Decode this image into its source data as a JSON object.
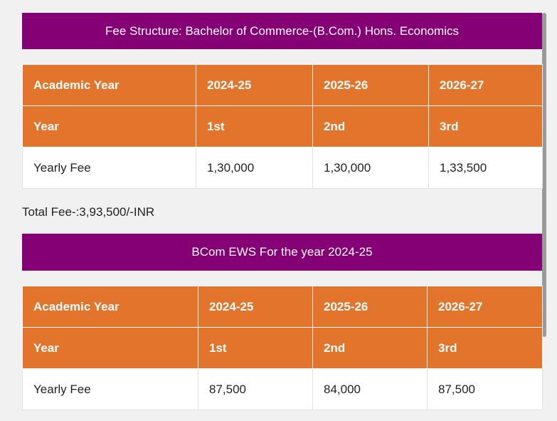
{
  "section1": {
    "title": "Fee Structure: Bachelor of Commerce-(B.Com.) Hons. Economics",
    "header_row": [
      "Academic Year",
      "2024-25",
      "2025-26",
      "2026-27"
    ],
    "year_row": [
      "Year",
      "1st",
      "2nd",
      "3rd"
    ],
    "fee_row": [
      "Yearly Fee",
      "1,30,000",
      "1,30,000",
      "1,33,500"
    ],
    "total": "Total Fee-:3,93,500/-INR"
  },
  "section2": {
    "title": "BCom EWS For the year 2024-25",
    "header_row": [
      "Academic Year",
      "2024-25",
      "2025-26",
      "2026-27"
    ],
    "year_row": [
      "Year",
      "1st",
      "2nd",
      "3rd"
    ],
    "fee_row": [
      "Yearly Fee",
      "87,500",
      "84,000",
      "87,500"
    ]
  },
  "colors": {
    "banner": "#850074",
    "header_cell": "#e2742b",
    "background": "#f1f1f1"
  }
}
